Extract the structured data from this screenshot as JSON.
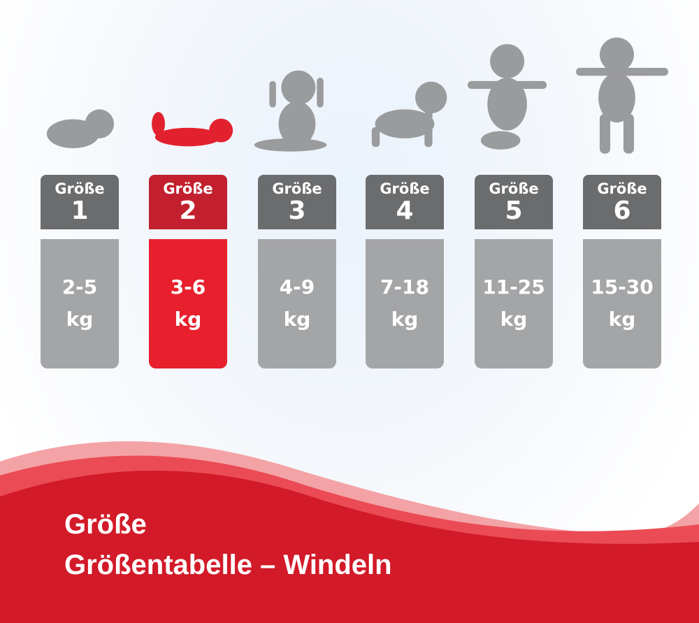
{
  "colors": {
    "selected_header": "#c2202f",
    "selected_body": "#e81f2d",
    "header": "#6b6c6e",
    "body": "#a4a5a7",
    "banner": "#d21a28"
  },
  "sizes": [
    {
      "label": "Größe",
      "number": "1",
      "range": "2-5",
      "unit": "kg",
      "selected": false,
      "icon": "newborn-curled-icon"
    },
    {
      "label": "Größe",
      "number": "2",
      "range": "3-6",
      "unit": "kg",
      "selected": true,
      "icon": "baby-lying-icon"
    },
    {
      "label": "Größe",
      "number": "3",
      "range": "4-9",
      "unit": "kg",
      "selected": false,
      "icon": "baby-sitting-icon"
    },
    {
      "label": "Größe",
      "number": "4",
      "range": "7-18",
      "unit": "kg",
      "selected": false,
      "icon": "baby-crawling-icon"
    },
    {
      "label": "Größe",
      "number": "5",
      "range": "11-25",
      "unit": "kg",
      "selected": false,
      "icon": "baby-kneeling-icon"
    },
    {
      "label": "Größe",
      "number": "6",
      "range": "15-30",
      "unit": "kg",
      "selected": false,
      "icon": "toddler-walking-icon"
    }
  ],
  "banner": {
    "title": "Größe",
    "subtitle": "Größentabelle – Windeln"
  }
}
